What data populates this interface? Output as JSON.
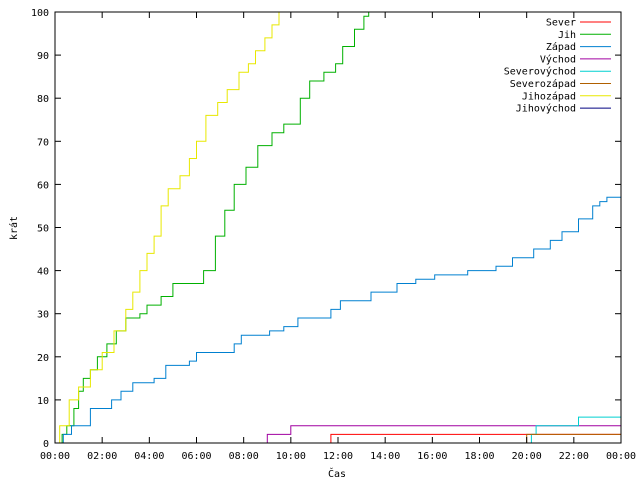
{
  "chart_data": {
    "type": "line",
    "step": true,
    "xlabel": "Čas",
    "ylabel": "krát",
    "xlim": [
      0,
      24
    ],
    "ylim": [
      0,
      100
    ],
    "x_ticks": [
      {
        "value": 0,
        "label": "00:00"
      },
      {
        "value": 2,
        "label": "02:00"
      },
      {
        "value": 4,
        "label": "04:00"
      },
      {
        "value": 6,
        "label": "06:00"
      },
      {
        "value": 8,
        "label": "08:00"
      },
      {
        "value": 10,
        "label": "10:00"
      },
      {
        "value": 12,
        "label": "12:00"
      },
      {
        "value": 14,
        "label": "14:00"
      },
      {
        "value": 16,
        "label": "16:00"
      },
      {
        "value": 18,
        "label": "18:00"
      },
      {
        "value": 20,
        "label": "20:00"
      },
      {
        "value": 22,
        "label": "22:00"
      },
      {
        "value": 24,
        "label": "00:00"
      }
    ],
    "y_ticks": [
      0,
      10,
      20,
      30,
      40,
      50,
      60,
      70,
      80,
      90,
      100
    ],
    "grid": false,
    "legend_position": "top-right",
    "series": [
      {
        "name": "Sever",
        "color": "#ff0000",
        "points": [
          [
            11.7,
            0
          ],
          [
            11.7,
            2
          ],
          [
            24,
            2
          ]
        ]
      },
      {
        "name": "Jih",
        "color": "#00b000",
        "points": [
          [
            0.25,
            0
          ],
          [
            0.3,
            2
          ],
          [
            0.5,
            4
          ],
          [
            0.8,
            8
          ],
          [
            1.0,
            12
          ],
          [
            1.2,
            15
          ],
          [
            1.5,
            17
          ],
          [
            1.8,
            20
          ],
          [
            2.2,
            23
          ],
          [
            2.6,
            26
          ],
          [
            3.0,
            29
          ],
          [
            3.6,
            30
          ],
          [
            3.9,
            32
          ],
          [
            4.5,
            34
          ],
          [
            5.0,
            37
          ],
          [
            6.0,
            37
          ],
          [
            6.3,
            40
          ],
          [
            6.8,
            48
          ],
          [
            7.2,
            54
          ],
          [
            7.6,
            60
          ],
          [
            8.1,
            64
          ],
          [
            8.6,
            69
          ],
          [
            9.2,
            72
          ],
          [
            9.7,
            74
          ],
          [
            10.4,
            80
          ],
          [
            10.8,
            84
          ],
          [
            11.4,
            86
          ],
          [
            11.9,
            88
          ],
          [
            12.2,
            92
          ],
          [
            12.7,
            96
          ],
          [
            13.1,
            99
          ],
          [
            13.3,
            100
          ]
        ]
      },
      {
        "name": "Západ",
        "color": "#0080d0",
        "points": [
          [
            0.25,
            0
          ],
          [
            0.35,
            2
          ],
          [
            0.7,
            4
          ],
          [
            1.3,
            4
          ],
          [
            1.5,
            8
          ],
          [
            2.4,
            10
          ],
          [
            2.8,
            12
          ],
          [
            3.3,
            14
          ],
          [
            4.2,
            15
          ],
          [
            4.7,
            18
          ],
          [
            5.7,
            19
          ],
          [
            6.0,
            21
          ],
          [
            7.6,
            23
          ],
          [
            7.9,
            25
          ],
          [
            9.1,
            26
          ],
          [
            9.7,
            27
          ],
          [
            10.3,
            29
          ],
          [
            11.3,
            29
          ],
          [
            11.7,
            31
          ],
          [
            12.1,
            33
          ],
          [
            13.4,
            35
          ],
          [
            14.5,
            37
          ],
          [
            15.3,
            38
          ],
          [
            16.1,
            39
          ],
          [
            17.5,
            40
          ],
          [
            18.7,
            41
          ],
          [
            19.4,
            43
          ],
          [
            20.3,
            45
          ],
          [
            21.0,
            47
          ],
          [
            21.5,
            49
          ],
          [
            22.2,
            52
          ],
          [
            22.8,
            55
          ],
          [
            23.1,
            56
          ],
          [
            23.4,
            57
          ],
          [
            24,
            57
          ]
        ]
      },
      {
        "name": "Východ",
        "color": "#a000a0",
        "points": [
          [
            8.9,
            0
          ],
          [
            9.0,
            2
          ],
          [
            9.9,
            2
          ],
          [
            10.0,
            4
          ],
          [
            24,
            4
          ]
        ]
      },
      {
        "name": "Severovýchod",
        "color": "#00d0d0",
        "points": [
          [
            20.0,
            0
          ],
          [
            20.2,
            2
          ],
          [
            20.4,
            4
          ],
          [
            22.0,
            4
          ],
          [
            22.2,
            6
          ],
          [
            24,
            6
          ]
        ]
      },
      {
        "name": "Severozápad",
        "color": "#b06000",
        "points": [
          [
            20.0,
            0
          ],
          [
            20.0,
            2
          ],
          [
            24,
            2
          ]
        ]
      },
      {
        "name": "Jihozápad",
        "color": "#e8e800",
        "points": [
          [
            0.1,
            0
          ],
          [
            0.2,
            4
          ],
          [
            0.6,
            10
          ],
          [
            1.0,
            13
          ],
          [
            1.5,
            17
          ],
          [
            2.0,
            21
          ],
          [
            2.5,
            26
          ],
          [
            3.0,
            31
          ],
          [
            3.3,
            35
          ],
          [
            3.6,
            40
          ],
          [
            3.9,
            44
          ],
          [
            4.2,
            48
          ],
          [
            4.5,
            55
          ],
          [
            4.8,
            59
          ],
          [
            5.3,
            62
          ],
          [
            5.7,
            66
          ],
          [
            6.0,
            70
          ],
          [
            6.4,
            76
          ],
          [
            6.9,
            79
          ],
          [
            7.3,
            82
          ],
          [
            7.8,
            86
          ],
          [
            8.2,
            88
          ],
          [
            8.5,
            91
          ],
          [
            8.9,
            94
          ],
          [
            9.2,
            97
          ],
          [
            9.5,
            100
          ]
        ]
      },
      {
        "name": "Jihovýchod",
        "color": "#000080",
        "points": [
          [
            24,
            0
          ]
        ]
      }
    ]
  }
}
